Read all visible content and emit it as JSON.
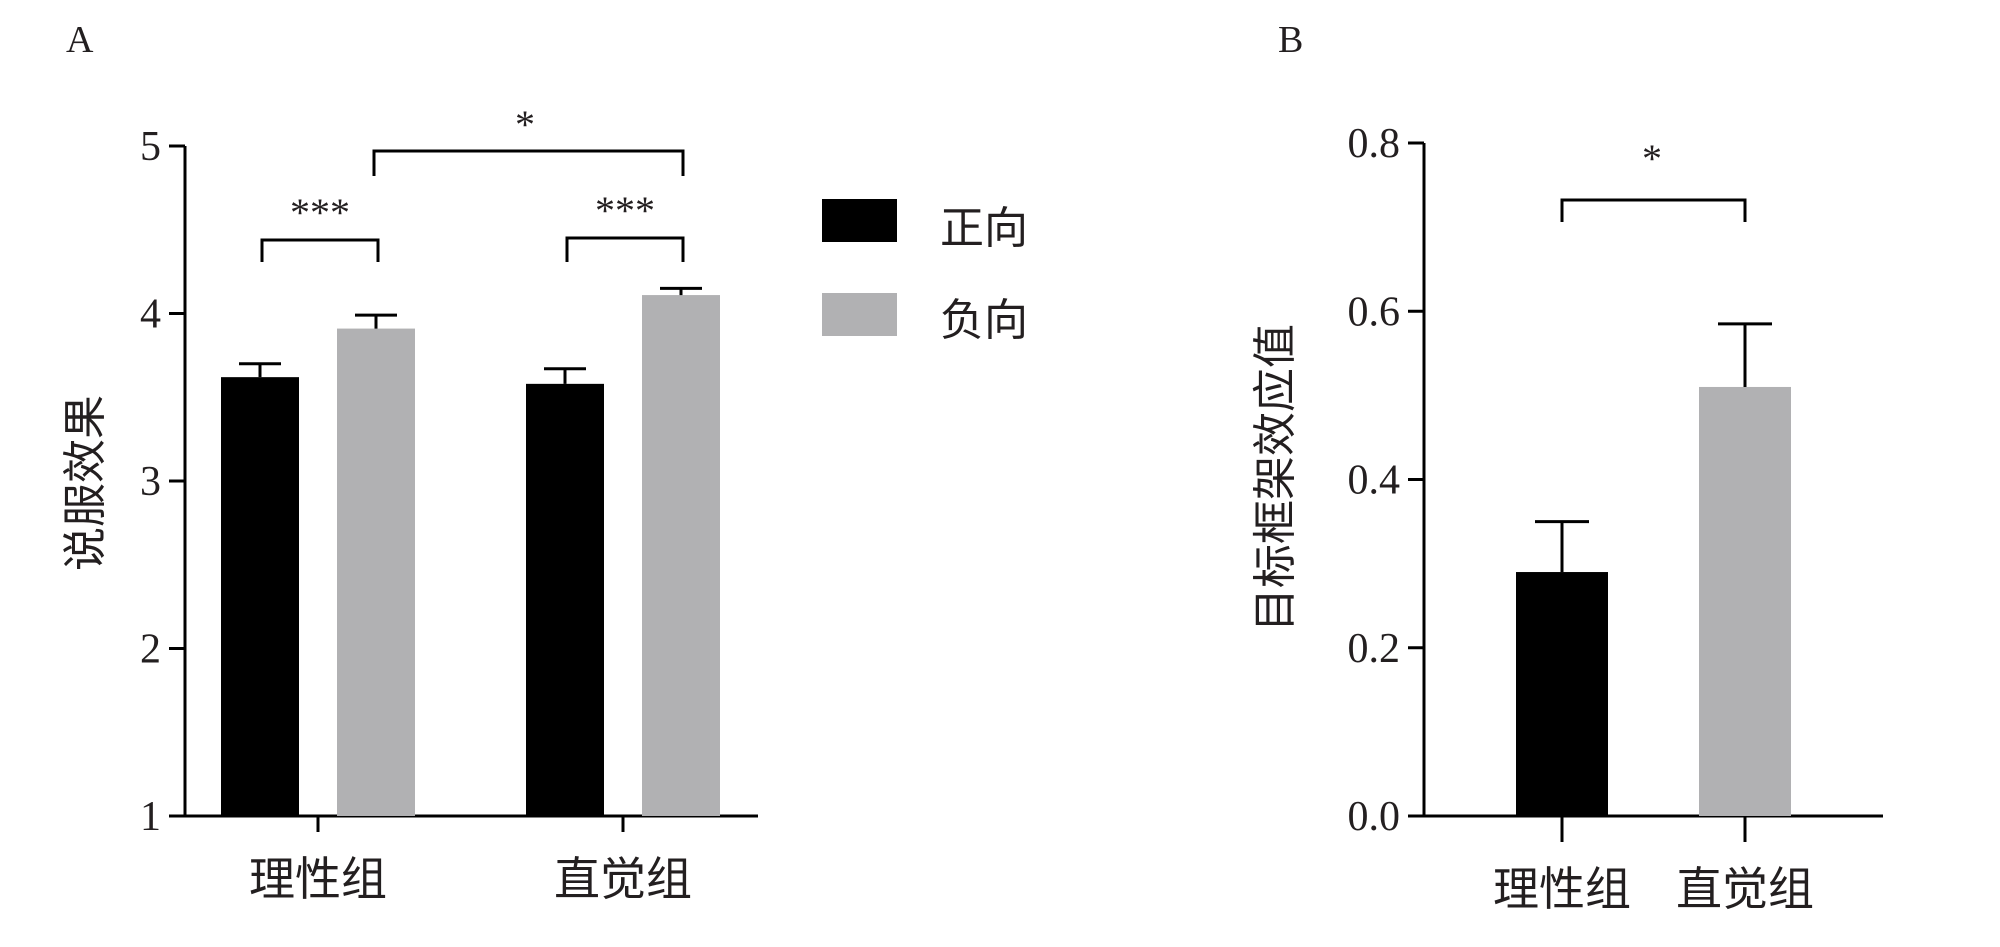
{
  "chart_data": [
    {
      "panel_label": "A",
      "type": "bar",
      "ylabel": "说服效果",
      "xlabel": "",
      "ylim": [
        1,
        5
      ],
      "yticks": [
        "1",
        "2",
        "3",
        "4",
        "5"
      ],
      "categories": [
        "理性组",
        "直觉组"
      ],
      "series": [
        {
          "name": "正向",
          "color": "#000000",
          "values": [
            3.62,
            3.58
          ],
          "errors": [
            0.08,
            0.09
          ]
        },
        {
          "name": "负向",
          "color": "#b1b1b3",
          "values": [
            3.91,
            4.11
          ],
          "errors": [
            0.08,
            0.04
          ]
        }
      ],
      "legend_position": "right",
      "annotations": [
        {
          "label": "***",
          "between": "理性组 正向–负向"
        },
        {
          "label": "***",
          "between": "直觉组 正向–负向"
        },
        {
          "label": "*",
          "between": "理性组 负向–直觉组 负向"
        }
      ]
    },
    {
      "panel_label": "B",
      "type": "bar",
      "ylabel": "目标框架效应值",
      "xlabel": "",
      "ylim": [
        0.0,
        0.8
      ],
      "yticks": [
        "0.0",
        "0.2",
        "0.4",
        "0.6",
        "0.8"
      ],
      "categories": [
        "理性组",
        "直觉组"
      ],
      "values": [
        0.29,
        0.51
      ],
      "errors": [
        0.06,
        0.075
      ],
      "colors": [
        "#000000",
        "#b1b1b3"
      ],
      "annotations": [
        {
          "label": "*",
          "between": "理性组–直觉组"
        }
      ]
    }
  ]
}
